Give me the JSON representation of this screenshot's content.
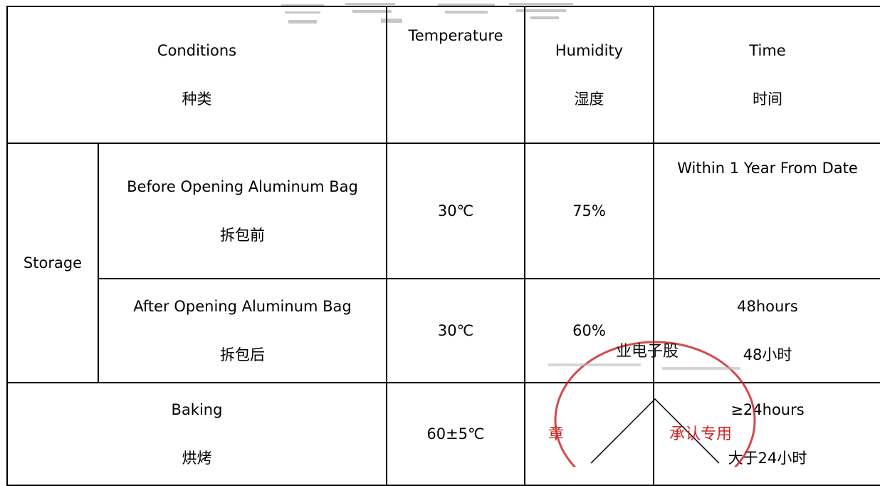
{
  "header": {
    "conditions_en": "Conditions",
    "conditions_zh": "种类",
    "temperature_en": "Temperature",
    "humidity_en": "Humidity",
    "humidity_zh": "湿度",
    "time_en": "Time",
    "time_zh": "时间"
  },
  "storage": {
    "label": "Storage",
    "before": {
      "condition_en": "Before Opening Aluminum Bag",
      "condition_zh": "拆包前",
      "temperature": "30℃",
      "humidity": "75%",
      "time": "Within 1 Year From Date"
    },
    "after": {
      "condition_en": "After Opening Aluminum Bag",
      "condition_zh": "拆包后",
      "temperature": "30℃",
      "humidity": "60%",
      "time_en": "48hours",
      "time_zh": "48小时"
    }
  },
  "baking": {
    "label_en": "Baking",
    "label_zh": "烘烤",
    "temperature": "60±5℃",
    "time_en": "≥24hours",
    "time_zh": "大于24小时"
  },
  "seal": {
    "top_text": "业电子股",
    "bottom_text": "承认专用",
    "left_char": "章",
    "color": "#cc2a2a"
  }
}
